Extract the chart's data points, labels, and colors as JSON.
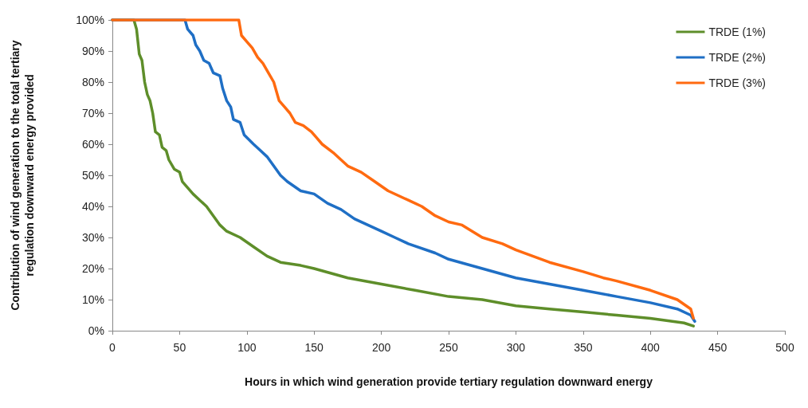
{
  "chart_data": {
    "type": "line",
    "xlabel": "Hours in which wind generation provide tertiary regulation downward energy",
    "ylabel": "Contribution of wind generation to the total tertiary regulation downward energy provided",
    "xlim": [
      0,
      500
    ],
    "xticks": [
      0,
      50,
      100,
      150,
      200,
      250,
      300,
      350,
      400,
      450,
      500
    ],
    "ylim": [
      0,
      100
    ],
    "yticks": [
      {
        "value": 0,
        "label": "0%"
      },
      {
        "value": 10,
        "label": "10%"
      },
      {
        "value": 20,
        "label": "20%"
      },
      {
        "value": 30,
        "label": "30%"
      },
      {
        "value": 40,
        "label": "40%"
      },
      {
        "value": 50,
        "label": "50%"
      },
      {
        "value": 60,
        "label": "60%"
      },
      {
        "value": 70,
        "label": "70%"
      },
      {
        "value": 80,
        "label": "80%"
      },
      {
        "value": 90,
        "label": "90%"
      },
      {
        "value": 100,
        "label": "100%"
      }
    ],
    "grid": false,
    "legend": "top right",
    "marker": "none",
    "line_style": "solid",
    "series": [
      {
        "name": "TRDE (1%)",
        "color": "#5e8e2a",
        "x": [
          0,
          16,
          18,
          20,
          22,
          24,
          26,
          28,
          30,
          32,
          35,
          37,
          40,
          42,
          46,
          50,
          52,
          56,
          60,
          65,
          70,
          75,
          80,
          85,
          95,
          105,
          115,
          125,
          140,
          150,
          175,
          200,
          225,
          250,
          275,
          300,
          325,
          350,
          375,
          400,
          425,
          432
        ],
        "values": [
          100,
          100,
          97,
          89,
          87,
          80,
          76,
          74,
          70,
          64,
          63,
          59,
          58,
          55,
          52,
          51,
          48,
          46,
          44,
          42,
          40,
          37,
          34,
          32,
          30,
          27,
          24,
          22,
          21,
          20,
          17,
          15,
          13,
          11,
          10,
          8,
          7,
          6,
          5,
          4,
          2.5,
          1.5
        ]
      },
      {
        "name": "TRDE (2%)",
        "color": "#1f6fc5",
        "x": [
          0,
          54,
          56,
          60,
          62,
          65,
          68,
          72,
          75,
          80,
          82,
          85,
          88,
          90,
          95,
          98,
          105,
          110,
          115,
          120,
          125,
          130,
          140,
          150,
          160,
          170,
          180,
          190,
          200,
          210,
          220,
          240,
          250,
          275,
          300,
          325,
          350,
          375,
          400,
          420,
          430,
          433
        ],
        "values": [
          100,
          100,
          97,
          95,
          92,
          90,
          87,
          86,
          83,
          82,
          78,
          74,
          72,
          68,
          67,
          63,
          60,
          58,
          56,
          53,
          50,
          48,
          45,
          44,
          41,
          39,
          36,
          34,
          32,
          30,
          28,
          25,
          23,
          20,
          17,
          15,
          13,
          11,
          9,
          7,
          5,
          3
        ]
      },
      {
        "name": "TRDE (3%)",
        "color": "#ff6a10",
        "x": [
          0,
          94,
          96,
          100,
          104,
          108,
          112,
          116,
          120,
          124,
          128,
          132,
          136,
          142,
          148,
          152,
          156,
          165,
          175,
          185,
          195,
          205,
          220,
          230,
          240,
          250,
          260,
          275,
          290,
          300,
          325,
          350,
          365,
          375,
          400,
          420,
          430,
          432
        ],
        "values": [
          100,
          100,
          95,
          93,
          91,
          88,
          86,
          83,
          80,
          74,
          72,
          70,
          67,
          66,
          64,
          62,
          60,
          57,
          53,
          51,
          48,
          45,
          42,
          40,
          37,
          35,
          34,
          30,
          28,
          26,
          22,
          19,
          17,
          16,
          13,
          10,
          7,
          4
        ]
      }
    ]
  }
}
